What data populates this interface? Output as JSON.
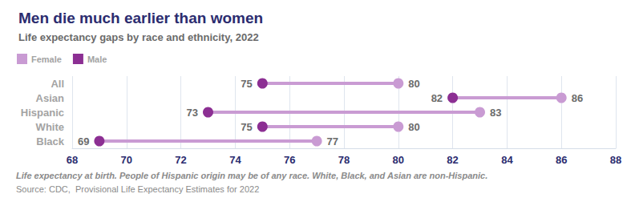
{
  "chart_data": {
    "type": "dumbbell",
    "title": "Men die much earlier than women",
    "subtitle": "Life expectancy gaps by race and ethnicity, 2022",
    "categories": [
      "All",
      "Asian",
      "Hispanic",
      "White",
      "Black"
    ],
    "series": [
      {
        "name": "Female",
        "color": "#c99bd3",
        "values": [
          80,
          86,
          83,
          80,
          77
        ]
      },
      {
        "name": "Male",
        "color": "#8c2f93",
        "values": [
          75,
          82,
          73,
          75,
          69
        ]
      }
    ],
    "xlim": [
      68,
      88
    ],
    "xticks": [
      68,
      70,
      72,
      74,
      76,
      78,
      80,
      82,
      84,
      86,
      88
    ],
    "grid": true,
    "orientation": "horizontal",
    "data_labels": true,
    "legend": "top left",
    "footnote": "Life expectancy at birth. People of Hispanic origin may be of any race. White, Black, and Asian are non-Hispanic.",
    "source": "Source: CDC,  Provisional Life Expectancy Estimates for 2022"
  }
}
